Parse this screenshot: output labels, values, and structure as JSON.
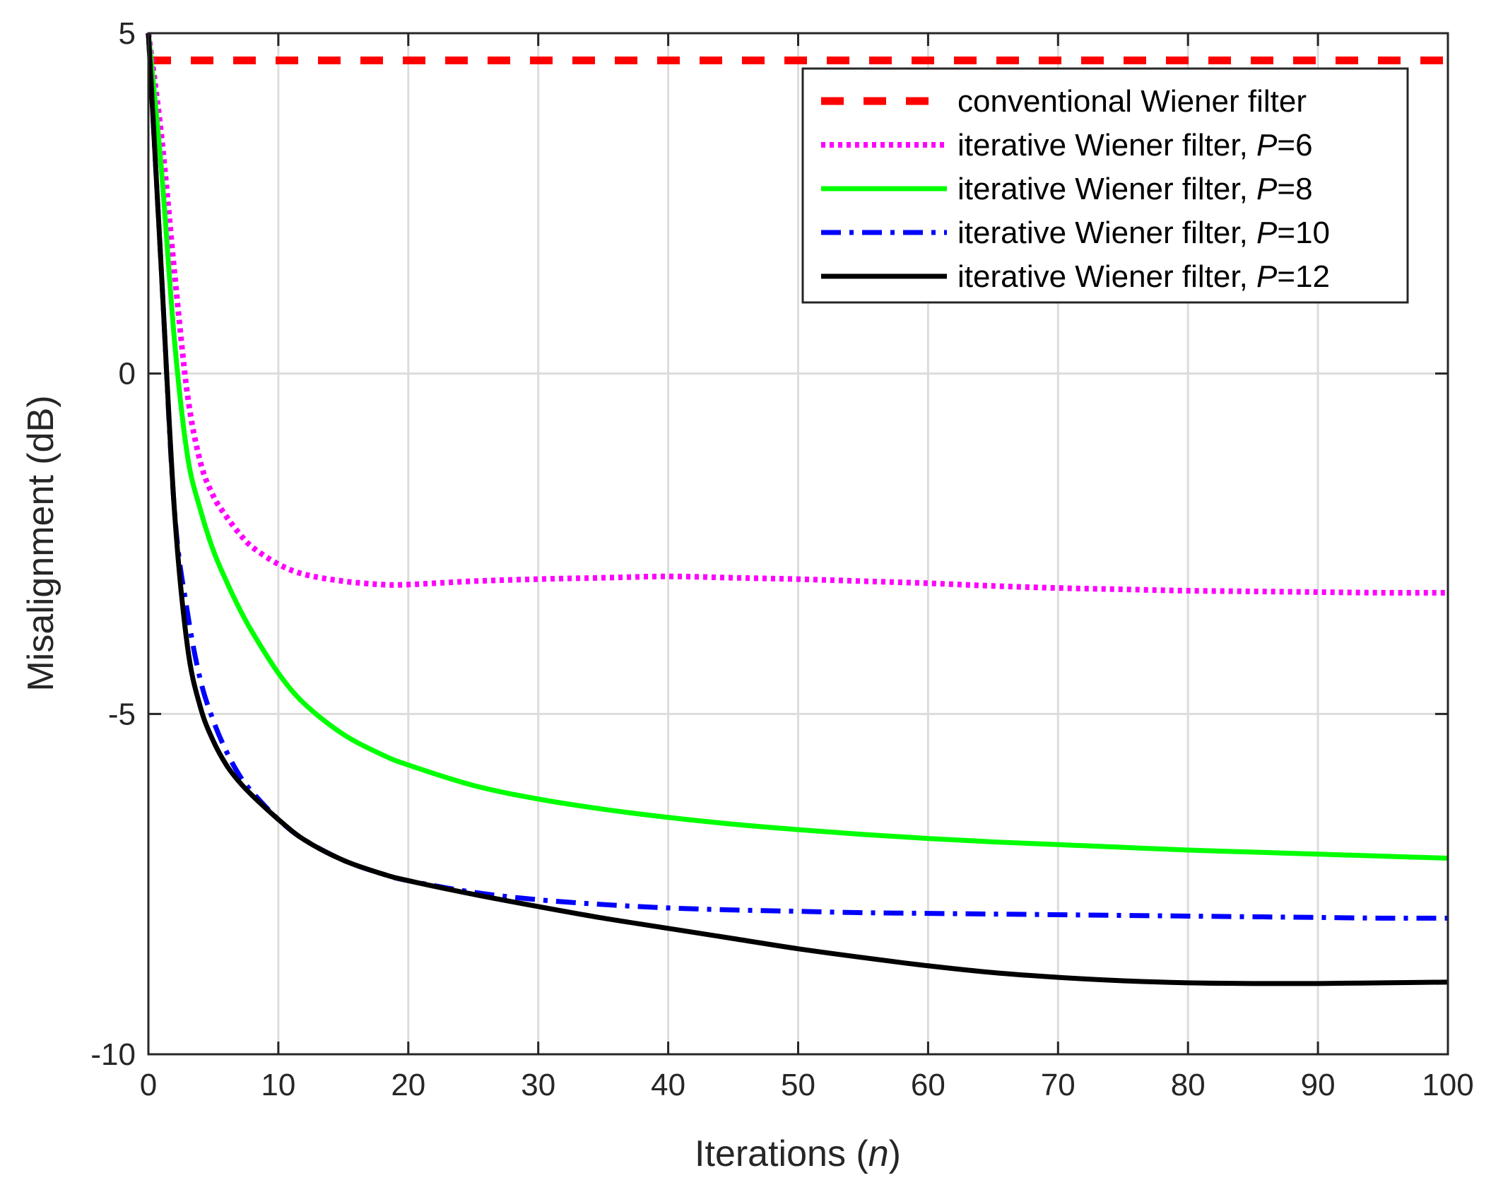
{
  "chart_data": {
    "type": "line",
    "title": "",
    "xlabel_prefix": "Iterations (",
    "xlabel_var": "n",
    "xlabel_suffix": ")",
    "ylabel": "Misalignment (dB)",
    "xlim": [
      0,
      100
    ],
    "ylim": [
      -10,
      5
    ],
    "xticks": [
      0,
      10,
      20,
      30,
      40,
      50,
      60,
      70,
      80,
      90,
      100
    ],
    "yticks": [
      -10,
      -5,
      0,
      5
    ],
    "grid": true,
    "legend_position": "top-right",
    "series": [
      {
        "name": "conventional Wiener filter",
        "legend_prefix": "conventional Wiener filter",
        "legend_var": "",
        "legend_suffix": "",
        "color": "#ff0000",
        "style": "dashed",
        "x": [
          0,
          100
        ],
        "y": [
          4.6,
          4.6
        ]
      },
      {
        "name": "iterative Wiener filter, P=6",
        "legend_prefix": "iterative Wiener filter, ",
        "legend_var": "P",
        "legend_suffix": "=6",
        "color": "#ff00ff",
        "style": "dotted",
        "x": [
          0,
          1,
          2,
          3,
          4,
          5,
          6,
          7,
          8,
          10,
          12,
          15,
          18,
          20,
          25,
          30,
          35,
          40,
          45,
          50,
          55,
          60,
          65,
          70,
          75,
          80,
          85,
          90,
          95,
          100
        ],
        "y": [
          5.0,
          3.5,
          1.5,
          -0.3,
          -1.3,
          -1.8,
          -2.1,
          -2.35,
          -2.55,
          -2.8,
          -2.95,
          -3.05,
          -3.1,
          -3.1,
          -3.05,
          -3.02,
          -3.0,
          -2.98,
          -3.0,
          -3.02,
          -3.05,
          -3.08,
          -3.12,
          -3.15,
          -3.17,
          -3.19,
          -3.2,
          -3.21,
          -3.22,
          -3.22
        ]
      },
      {
        "name": "iterative Wiener filter, P=8",
        "legend_prefix": "iterative Wiener filter, ",
        "legend_var": "P",
        "legend_suffix": "=8",
        "color": "#00ff00",
        "style": "solid",
        "x": [
          0,
          1,
          2,
          3,
          4,
          5,
          6,
          7,
          8,
          10,
          12,
          15,
          18,
          20,
          25,
          30,
          35,
          40,
          45,
          50,
          55,
          60,
          65,
          70,
          75,
          80,
          85,
          90,
          95,
          100
        ],
        "y": [
          5.0,
          3.0,
          0.5,
          -1.2,
          -2.0,
          -2.6,
          -3.05,
          -3.45,
          -3.8,
          -4.4,
          -4.85,
          -5.3,
          -5.6,
          -5.75,
          -6.05,
          -6.25,
          -6.4,
          -6.52,
          -6.62,
          -6.7,
          -6.77,
          -6.83,
          -6.88,
          -6.92,
          -6.96,
          -7.0,
          -7.03,
          -7.06,
          -7.09,
          -7.12
        ]
      },
      {
        "name": "iterative Wiener filter, P=10",
        "legend_prefix": "iterative Wiener filter, ",
        "legend_var": "P",
        "legend_suffix": "=10",
        "color": "#0000ff",
        "style": "dashdot",
        "x": [
          0,
          1,
          2,
          3,
          4,
          5,
          6,
          7,
          8,
          10,
          12,
          15,
          18,
          20,
          25,
          30,
          35,
          40,
          45,
          50,
          55,
          60,
          65,
          70,
          75,
          80,
          85,
          90,
          95,
          100
        ],
        "y": [
          5.0,
          1.5,
          -2.0,
          -3.5,
          -4.5,
          -5.1,
          -5.55,
          -5.9,
          -6.15,
          -6.55,
          -6.85,
          -7.15,
          -7.35,
          -7.45,
          -7.62,
          -7.73,
          -7.8,
          -7.85,
          -7.88,
          -7.9,
          -7.92,
          -7.93,
          -7.94,
          -7.95,
          -7.96,
          -7.97,
          -7.98,
          -7.99,
          -8.0,
          -8.0
        ]
      },
      {
        "name": "iterative Wiener filter, P=12",
        "legend_prefix": "iterative Wiener filter, ",
        "legend_var": "P",
        "legend_suffix": "=12",
        "color": "#000000",
        "style": "solid",
        "x": [
          0,
          1,
          2,
          3,
          4,
          5,
          6,
          7,
          8,
          10,
          12,
          15,
          18,
          20,
          25,
          30,
          35,
          40,
          45,
          50,
          55,
          60,
          65,
          70,
          75,
          80,
          85,
          90,
          95,
          100
        ],
        "y": [
          5.0,
          1.5,
          -2.0,
          -4.0,
          -4.9,
          -5.4,
          -5.75,
          -6.0,
          -6.2,
          -6.55,
          -6.85,
          -7.15,
          -7.35,
          -7.45,
          -7.65,
          -7.83,
          -8.0,
          -8.15,
          -8.3,
          -8.45,
          -8.58,
          -8.7,
          -8.8,
          -8.87,
          -8.92,
          -8.95,
          -8.96,
          -8.96,
          -8.95,
          -8.94
        ]
      }
    ]
  }
}
